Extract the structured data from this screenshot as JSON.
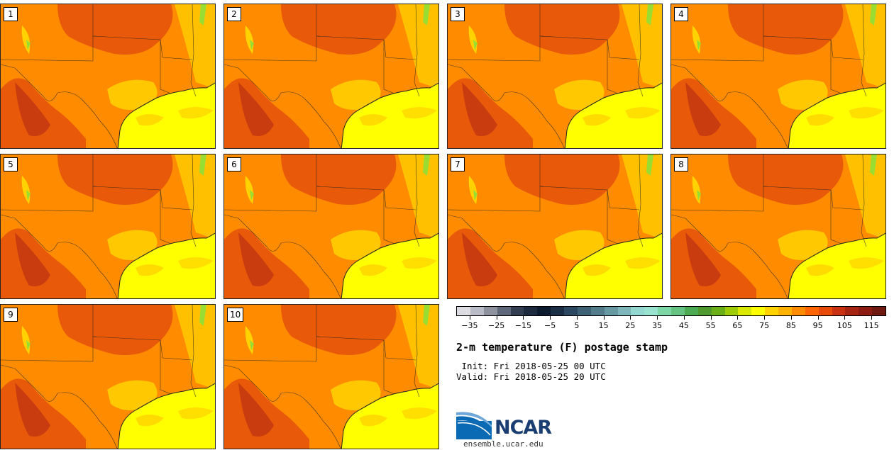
{
  "figure": {
    "title": "2-m temperature (F) postage stamp",
    "init": " Init: Fri 2018-05-25 00 UTC",
    "valid": "Valid: Fri 2018-05-25 20 UTC",
    "url": "ensemble.ucar.edu",
    "logo_text": "NCAR"
  },
  "members": [
    {
      "label": "1"
    },
    {
      "label": "2"
    },
    {
      "label": "3"
    },
    {
      "label": "4"
    },
    {
      "label": "5"
    },
    {
      "label": "6"
    },
    {
      "label": "7"
    },
    {
      "label": "8"
    },
    {
      "label": "9"
    },
    {
      "label": "10"
    }
  ],
  "colors": {
    "gulf": "#ffff00",
    "land_base": "#ff8c00",
    "hot": "#e85a0a",
    "hotter": "#c83c10",
    "warm": "#ffd200",
    "cool": "#99dd33",
    "border": "#222222",
    "logo_blue": "#0a6ab4"
  },
  "colorbar": {
    "colors": [
      "#dcdce2",
      "#b9bcc6",
      "#8d929e",
      "#5f6878",
      "#333e50",
      "#1e2b3e",
      "#0c1a2e",
      "#1c2e44",
      "#2c4860",
      "#3e6274",
      "#527c8a",
      "#6699a2",
      "#7db5b8",
      "#94d6d0",
      "#99e2d0",
      "#7dd6a6",
      "#66c482",
      "#4caa52",
      "#4e9a2e",
      "#6aae18",
      "#9ecb08",
      "#d9e800",
      "#ffff00",
      "#ffd200",
      "#ffb200",
      "#ff8c00",
      "#ff6500",
      "#e84a0a",
      "#c83212",
      "#a82412",
      "#8c1c12",
      "#6e1810"
    ],
    "tick_values": [
      -35,
      -25,
      -15,
      -5,
      5,
      15,
      25,
      35,
      45,
      55,
      65,
      75,
      85,
      95,
      105,
      115
    ],
    "tick_labels": [
      "−35",
      "−25",
      "−15",
      "−5",
      "5",
      "15",
      "25",
      "35",
      "45",
      "55",
      "65",
      "75",
      "85",
      "95",
      "105",
      "115"
    ],
    "range": [
      -40,
      120
    ]
  }
}
